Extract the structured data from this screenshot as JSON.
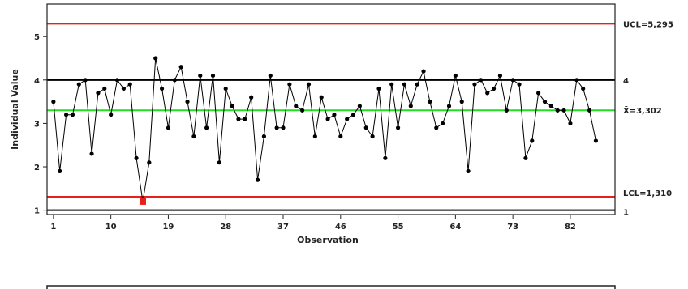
{
  "chart_data": {
    "type": "line",
    "title": "",
    "xlabel": "Observation",
    "ylabel": "Individual Value",
    "xlim": [
      0,
      89
    ],
    "ylim": [
      0.9,
      5.75
    ],
    "x_ticks": [
      1,
      10,
      19,
      28,
      37,
      46,
      55,
      64,
      73,
      82
    ],
    "y_ticks": [
      1,
      2,
      3,
      4,
      5
    ],
    "grid": false,
    "reference_lines": [
      {
        "name": "UCL",
        "label": "UCL=5,295",
        "value": 5.295,
        "color": "#e8201a"
      },
      {
        "name": "Target",
        "label": "4",
        "value": 4.0,
        "color": "#000000"
      },
      {
        "name": "Mean",
        "label": "X̄=3,302",
        "value": 3.302,
        "color": "#22dd22"
      },
      {
        "name": "LCL",
        "label": "LCL=1,310",
        "value": 1.31,
        "color": "#e8201a"
      },
      {
        "name": "Baseline",
        "label": "1",
        "value": 1.0,
        "color": "#000000"
      }
    ],
    "series": [
      {
        "color": "#000000",
        "x": [
          1,
          2,
          3,
          4,
          5,
          6,
          7,
          8,
          9,
          10,
          11,
          12,
          13,
          14,
          15,
          16,
          17,
          18,
          19,
          20,
          21,
          22,
          23,
          24,
          25,
          26,
          27,
          28,
          29,
          30,
          31,
          32,
          33,
          34,
          35,
          36,
          37,
          38,
          39,
          40,
          41,
          42,
          43,
          44,
          45,
          46,
          47,
          48,
          49,
          50,
          51,
          52,
          53,
          54,
          55,
          56,
          57,
          58,
          59,
          60,
          61,
          62,
          63,
          64,
          65,
          66,
          67,
          68,
          69,
          70,
          71,
          72,
          73,
          74,
          75,
          76,
          77,
          78,
          79,
          80,
          81,
          82,
          83,
          84,
          85,
          86
        ],
        "y": [
          3.5,
          1.9,
          3.2,
          3.2,
          3.9,
          4.0,
          2.3,
          3.7,
          3.8,
          3.2,
          4.0,
          3.8,
          3.9,
          2.2,
          1.2,
          2.1,
          4.5,
          3.8,
          2.9,
          4.0,
          4.3,
          3.5,
          2.7,
          4.1,
          2.9,
          4.1,
          2.1,
          3.8,
          3.4,
          3.1,
          3.1,
          3.6,
          1.7,
          2.7,
          4.1,
          2.9,
          2.9,
          3.9,
          3.4,
          3.3,
          3.9,
          2.7,
          3.6,
          3.1,
          3.2,
          2.7,
          3.1,
          3.2,
          3.4,
          2.9,
          2.7,
          3.8,
          2.2,
          3.9,
          2.9,
          3.9,
          3.4,
          3.9,
          4.2,
          3.5,
          2.9,
          3.0,
          3.4,
          4.1,
          3.5,
          1.9,
          3.9,
          4.0,
          3.7,
          3.8,
          4.1,
          3.3,
          4.0,
          3.9,
          2.2,
          2.6,
          3.7,
          3.5,
          3.4,
          3.3,
          3.3,
          3.0,
          4.0,
          3.8,
          3.3,
          2.6
        ]
      }
    ],
    "out_of_control": [
      {
        "x": 15,
        "y": 1.2,
        "color": "#e8201a"
      }
    ]
  }
}
